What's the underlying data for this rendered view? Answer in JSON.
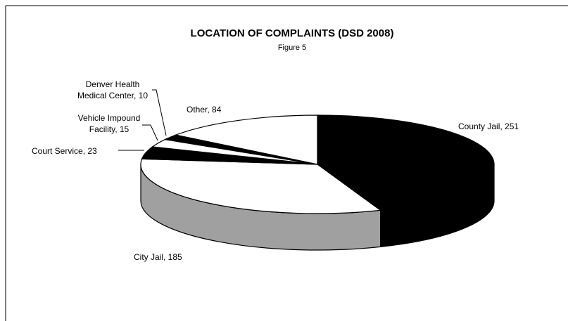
{
  "chart_data": {
    "type": "pie3d",
    "title": "LOCATION OF COMPLAINTS (DSD 2008)",
    "subtitle": "Figure 5",
    "values": [
      251,
      185,
      23,
      15,
      10,
      84
    ],
    "value_labels": [
      "County Jail, 251",
      "City Jail, 185",
      "Court Service, 23",
      "Vehicle Impound\nFacility, 15",
      "Denver Health\nMedical Center, 10",
      "Other, 84"
    ],
    "colors": [
      "#000000",
      "#ffffff",
      "#000000",
      "#ffffff",
      "#000000",
      "#ffffff"
    ],
    "side_colors": [
      "#000000",
      "#a0a0a0",
      "#000000",
      "#ffffff",
      "#000000",
      "#ffffff"
    ]
  }
}
